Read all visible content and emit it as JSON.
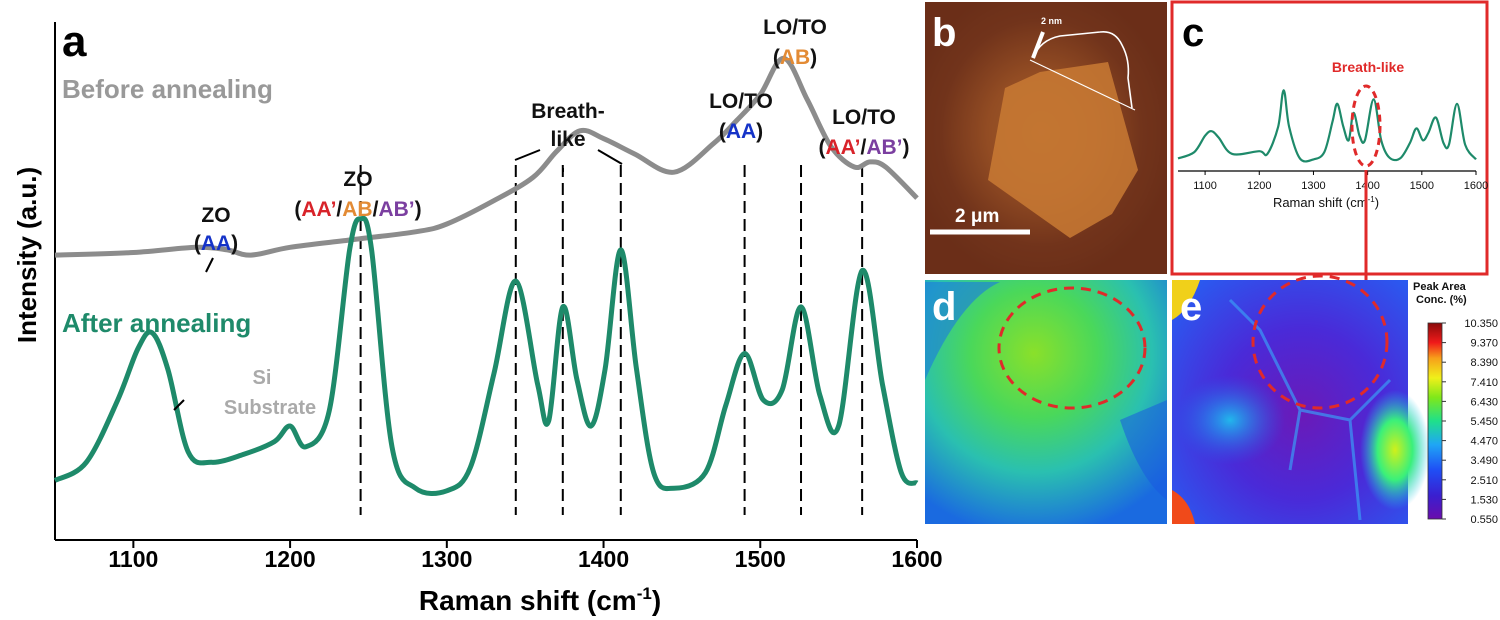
{
  "panel_labels": {
    "a": "a",
    "b": "b",
    "c": "c",
    "d": "d",
    "e": "e"
  },
  "chart_data": [
    {
      "id": "a",
      "type": "line",
      "xlabel": "Raman shift (cm",
      "xlabel_sup": "-1",
      "xlabel_close": ")",
      "ylabel": "Intensity (a.u.)",
      "xlim": [
        1050,
        1600
      ],
      "xticks": [
        1100,
        1200,
        1300,
        1400,
        1500,
        1600
      ],
      "ylim": [
        0,
        1
      ],
      "colors": {
        "before": "#8c8c8c",
        "after": "#1e8a6a"
      },
      "series": [
        {
          "name": "Before annealing",
          "x": [
            1050,
            1100,
            1140,
            1160,
            1175,
            1200,
            1240,
            1280,
            1300,
            1330,
            1355,
            1370,
            1385,
            1400,
            1420,
            1445,
            1470,
            1485,
            1500,
            1515,
            1530,
            1545,
            1560,
            1570,
            1580,
            1600
          ],
          "y": [
            0.55,
            0.555,
            0.565,
            0.56,
            0.55,
            0.565,
            0.58,
            0.595,
            0.61,
            0.655,
            0.7,
            0.75,
            0.79,
            0.775,
            0.745,
            0.71,
            0.765,
            0.81,
            0.86,
            0.93,
            0.85,
            0.76,
            0.72,
            0.73,
            0.72,
            0.66
          ]
        },
        {
          "name": "After annealing",
          "x": [
            1050,
            1070,
            1090,
            1103,
            1112,
            1122,
            1135,
            1150,
            1170,
            1190,
            1200,
            1210,
            1225,
            1238,
            1245,
            1252,
            1265,
            1280,
            1300,
            1315,
            1330,
            1344,
            1358,
            1365,
            1374,
            1383,
            1392,
            1401,
            1411,
            1421,
            1432,
            1445,
            1465,
            1478,
            1490,
            1502,
            1514,
            1526,
            1538,
            1550,
            1565,
            1578,
            1590,
            1600
          ],
          "y": [
            0.115,
            0.15,
            0.27,
            0.37,
            0.4,
            0.33,
            0.17,
            0.15,
            0.165,
            0.19,
            0.22,
            0.18,
            0.25,
            0.56,
            0.62,
            0.56,
            0.18,
            0.1,
            0.095,
            0.14,
            0.32,
            0.5,
            0.3,
            0.23,
            0.45,
            0.31,
            0.22,
            0.33,
            0.56,
            0.33,
            0.13,
            0.1,
            0.13,
            0.26,
            0.36,
            0.27,
            0.29,
            0.45,
            0.28,
            0.22,
            0.52,
            0.3,
            0.13,
            0.11
          ]
        }
      ],
      "text_labels": {
        "before": "Before annealing",
        "after": "After annealing",
        "si1": "Si",
        "si2": "Substrate"
      },
      "annotations": {
        "zo_aa_1": "ZO",
        "zo_aa_open": "(",
        "zo_aa_aa": "AA",
        "zo_aa_close": ")",
        "zo_mix_1": "ZO",
        "zo_mix_open": "(",
        "zo_mix_aa2": "AA’",
        "zo_mix_s1": "/",
        "zo_mix_ab": "AB",
        "zo_mix_s2": "/",
        "zo_mix_ab2": "AB’",
        "zo_mix_close": ")",
        "breath_1": "Breath-",
        "breath_2": "like",
        "loto_aa_1": "LO/TO",
        "loto_aa_open": "(",
        "loto_aa_aa": "AA",
        "loto_aa_close": ")",
        "loto_ab_1": "LO/TO",
        "loto_ab_open": "(",
        "loto_ab_ab": "AB",
        "loto_ab_close": ")",
        "loto_mix_1": "LO/TO",
        "loto_mix_open": "(",
        "loto_mix_aa2": "AA’",
        "loto_mix_s": "/",
        "loto_mix_ab2": "AB’",
        "loto_mix_close": ")"
      },
      "annotation_colors": {
        "AA": "#1533c8",
        "AA'": "#d8232a",
        "AB": "#e38b35",
        "AB'": "#7b3fa0",
        "text": "#111111"
      },
      "dashed_lines_x": [
        1245,
        1344,
        1374,
        1411,
        1490,
        1526,
        1565
      ]
    },
    {
      "id": "c",
      "type": "line",
      "xlabel": "Raman shift (cm",
      "xlabel_sup": "-1",
      "xlabel_close": ")",
      "xlim": [
        1050,
        1600
      ],
      "xticks": [
        1100,
        1200,
        1300,
        1400,
        1500,
        1600
      ],
      "annotation": "Breath-like",
      "series": [
        {
          "name": "Raman spectrum",
          "x": [
            1050,
            1080,
            1100,
            1112,
            1125,
            1150,
            1200,
            1215,
            1235,
            1245,
            1255,
            1275,
            1300,
            1320,
            1335,
            1344,
            1355,
            1365,
            1374,
            1385,
            1395,
            1411,
            1425,
            1440,
            1460,
            1478,
            1490,
            1502,
            1512,
            1526,
            1540,
            1550,
            1565,
            1580,
            1600
          ],
          "y": [
            0.05,
            0.12,
            0.3,
            0.35,
            0.28,
            0.1,
            0.13,
            0.1,
            0.4,
            0.8,
            0.4,
            0.05,
            0.04,
            0.12,
            0.45,
            0.65,
            0.4,
            0.25,
            0.55,
            0.3,
            0.25,
            0.7,
            0.25,
            0.06,
            0.05,
            0.22,
            0.38,
            0.25,
            0.33,
            0.5,
            0.22,
            0.2,
            0.65,
            0.2,
            0.04
          ]
        }
      ]
    },
    {
      "id": "colorbar",
      "type": "heatmap",
      "title_line1": "Peak Area",
      "title_line2": "Conc. (%)",
      "ticks": [
        "10.350",
        "9.370",
        "8.390",
        "7.410",
        "6.430",
        "5.450",
        "4.470",
        "3.490",
        "2.510",
        "1.530",
        "0.550"
      ]
    }
  ],
  "panel_b": {
    "scale_bar": "2 μm",
    "height_label": "2 nm"
  }
}
